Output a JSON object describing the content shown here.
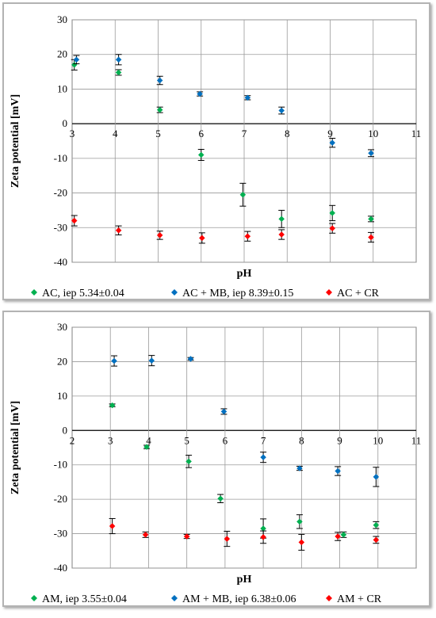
{
  "chart_data": [
    {
      "type": "scatter",
      "xlabel": "pH",
      "ylabel": "Zeta potential [mV]",
      "xlim": [
        3,
        11
      ],
      "ylim": [
        -40,
        30
      ],
      "xticks": [
        3,
        4,
        5,
        6,
        7,
        8,
        9,
        10,
        11
      ],
      "yticks": [
        30,
        20,
        10,
        0,
        -10,
        -20,
        -30,
        -40
      ],
      "tick_labels_at_zero_line": true,
      "grid": true,
      "legend_position": "bottom",
      "error_bars": true,
      "series": [
        {
          "name": "AC, iep 5.34±0.04",
          "color": "#00b050",
          "points": [
            {
              "x": 3.05,
              "y": 17.0,
              "err": 1.5
            },
            {
              "x": 4.08,
              "y": 14.8,
              "err": 0.8
            },
            {
              "x": 5.04,
              "y": 4.0,
              "err": 0.8
            },
            {
              "x": 6.0,
              "y": -9.0,
              "err": 1.6
            },
            {
              "x": 6.97,
              "y": -20.5,
              "err": 3.3
            },
            {
              "x": 7.87,
              "y": -27.5,
              "err": 2.5
            },
            {
              "x": 9.05,
              "y": -25.8,
              "err": 2.2
            },
            {
              "x": 9.95,
              "y": -27.5,
              "err": 0.8
            }
          ]
        },
        {
          "name": "AC + MB, iep 8.39±0.15",
          "color": "#0070c0",
          "points": [
            {
              "x": 3.1,
              "y": 18.5,
              "err": 1.2
            },
            {
              "x": 4.08,
              "y": 18.5,
              "err": 1.5
            },
            {
              "x": 5.04,
              "y": 12.5,
              "err": 1.2
            },
            {
              "x": 5.97,
              "y": 8.6,
              "err": 0.6
            },
            {
              "x": 7.08,
              "y": 7.5,
              "err": 0.6
            },
            {
              "x": 7.87,
              "y": 3.8,
              "err": 1.0
            },
            {
              "x": 9.05,
              "y": -5.5,
              "err": 1.3
            },
            {
              "x": 9.95,
              "y": -8.5,
              "err": 1.0
            }
          ]
        },
        {
          "name": "AC + CR",
          "color": "#ff0000",
          "points": [
            {
              "x": 3.05,
              "y": -28.0,
              "err": 1.5
            },
            {
              "x": 4.08,
              "y": -30.8,
              "err": 1.3
            },
            {
              "x": 5.04,
              "y": -32.2,
              "err": 1.2
            },
            {
              "x": 6.02,
              "y": -33.0,
              "err": 1.5
            },
            {
              "x": 7.08,
              "y": -32.5,
              "err": 1.4
            },
            {
              "x": 7.87,
              "y": -32.0,
              "err": 1.4
            },
            {
              "x": 9.05,
              "y": -30.2,
              "err": 1.4
            },
            {
              "x": 9.95,
              "y": -32.8,
              "err": 1.4
            }
          ]
        }
      ]
    },
    {
      "type": "scatter",
      "xlabel": "pH",
      "ylabel": "Zeta potential [mV]",
      "xlim": [
        2,
        11
      ],
      "ylim": [
        -40,
        30
      ],
      "xticks": [
        2,
        3,
        4,
        5,
        6,
        7,
        8,
        9,
        10,
        11
      ],
      "yticks": [
        30,
        20,
        10,
        0,
        -10,
        -20,
        -30,
        -40
      ],
      "tick_labels_at_zero_line": true,
      "grid": true,
      "legend_position": "bottom",
      "error_bars": true,
      "series": [
        {
          "name": "AM, iep 3.55±0.04",
          "color": "#00b050",
          "points": [
            {
              "x": 3.05,
              "y": 7.3,
              "err": 0.4
            },
            {
              "x": 3.95,
              "y": -4.8,
              "err": 0.5
            },
            {
              "x": 5.05,
              "y": -9.0,
              "err": 1.8
            },
            {
              "x": 5.88,
              "y": -19.8,
              "err": 1.2
            },
            {
              "x": 7.0,
              "y": -28.5,
              "err": 2.8
            },
            {
              "x": 7.95,
              "y": -26.5,
              "err": 2.0
            },
            {
              "x": 9.1,
              "y": -30.3,
              "err": 0.8
            },
            {
              "x": 9.95,
              "y": -27.5,
              "err": 1.0
            }
          ]
        },
        {
          "name": "AM + MB, iep 6.38±0.06",
          "color": "#0070c0",
          "points": [
            {
              "x": 3.1,
              "y": 20.2,
              "err": 1.5
            },
            {
              "x": 4.08,
              "y": 20.3,
              "err": 1.5
            },
            {
              "x": 5.1,
              "y": 20.8,
              "err": 0.4
            },
            {
              "x": 5.97,
              "y": 5.5,
              "err": 0.8
            },
            {
              "x": 7.0,
              "y": -7.8,
              "err": 1.5
            },
            {
              "x": 7.95,
              "y": -11.0,
              "err": 0.6
            },
            {
              "x": 8.95,
              "y": -11.8,
              "err": 1.3
            },
            {
              "x": 9.95,
              "y": -13.5,
              "err": 2.8
            }
          ]
        },
        {
          "name": "AM + CR",
          "color": "#ff0000",
          "points": [
            {
              "x": 3.05,
              "y": -27.8,
              "err": 2.2
            },
            {
              "x": 3.92,
              "y": -30.3,
              "err": 0.8
            },
            {
              "x": 5.0,
              "y": -30.8,
              "err": 0.6
            },
            {
              "x": 6.05,
              "y": -31.5,
              "err": 2.2
            },
            {
              "x": 7.0,
              "y": -31.0,
              "err": 1.8
            },
            {
              "x": 8.0,
              "y": -32.5,
              "err": 2.3
            },
            {
              "x": 8.95,
              "y": -30.8,
              "err": 1.2
            },
            {
              "x": 9.95,
              "y": -31.8,
              "err": 1.0
            }
          ]
        }
      ]
    }
  ]
}
